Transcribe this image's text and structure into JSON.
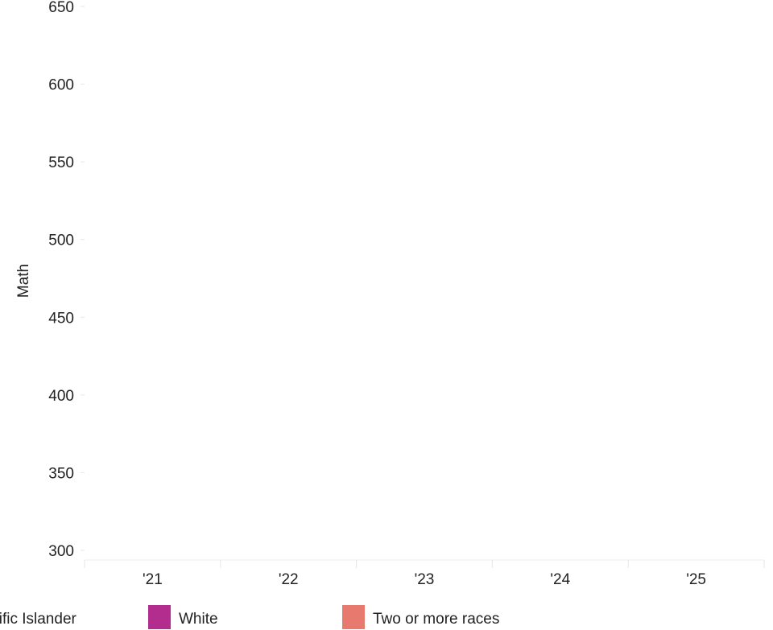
{
  "chart_data": {
    "type": "line",
    "title": "",
    "xlabel": "",
    "ylabel": "Math",
    "x_ticks": [
      "'21",
      "'22",
      "'23",
      "'24",
      "'25"
    ],
    "y_ticks": [
      300,
      350,
      400,
      450,
      500,
      550,
      600,
      650
    ],
    "ylim": [
      300,
      650
    ],
    "grid": false,
    "legend_position": "bottom",
    "legend": [
      {
        "label": "Pacific Islander",
        "color": "#7a1f8c"
      },
      {
        "label": "White",
        "color": "#b22d8e"
      },
      {
        "label": "Two or more races",
        "color": "#e8796f"
      }
    ],
    "series": []
  }
}
